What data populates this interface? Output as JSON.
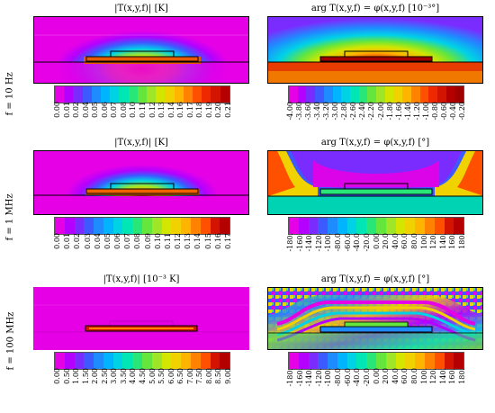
{
  "rows": [
    {
      "freq_label": "f = 10 Hz",
      "left": {
        "title": "|T(x,y,f)| [K]",
        "colorbar_ticks": [
          "0.00",
          "0.01",
          "0.02",
          "0.04",
          "0.05",
          "0.06",
          "0.07",
          "0.08",
          "0.10",
          "0.11",
          "0.12",
          "0.13",
          "0.14",
          "0.16",
          "0.17",
          "0.18",
          "0.19",
          "0.20",
          "0.21"
        ]
      },
      "right": {
        "title": "arg T(x,y,f) = φ(x,y,f) [10⁻³°]",
        "colorbar_ticks": [
          "-4.00",
          "-3.80",
          "-3.60",
          "-3.40",
          "-3.20",
          "-3.00",
          "-2.80",
          "-2.60",
          "-2.40",
          "-2.20",
          "-2.00",
          "-1.80",
          "-1.60",
          "-1.40",
          "-1.20",
          "-1.00",
          "-0.80",
          "-0.60",
          "-0.40",
          "-0.20"
        ]
      }
    },
    {
      "freq_label": "f = 1 MHz",
      "left": {
        "title": "|T(x,y,f)| [K]",
        "colorbar_ticks": [
          "0.00",
          "0.01",
          "0.02",
          "0.03",
          "0.04",
          "0.05",
          "0.06",
          "0.07",
          "0.08",
          "0.09",
          "0.10",
          "0.11",
          "0.12",
          "0.13",
          "0.14",
          "0.15",
          "0.16",
          "0.17"
        ]
      },
      "right": {
        "title": "arg T(x,y,f) = φ(x,y,f) [°]",
        "colorbar_ticks": [
          "-180.",
          "-160.",
          "-140.",
          "-120.",
          "-100.",
          "-80.0",
          "-60.0",
          "-40.0",
          "-20.0",
          "0.00",
          "20.0",
          "40.0",
          "60.0",
          "80.0",
          "100.",
          "120.",
          "140.",
          "160.",
          "180."
        ]
      }
    },
    {
      "freq_label": "f = 100 MHz",
      "left": {
        "title": "|T(x,y,f)| [10⁻³ K]",
        "colorbar_ticks": [
          "0.00",
          "0.50",
          "1.00",
          "1.50",
          "2.00",
          "2.50",
          "3.00",
          "3.50",
          "4.00",
          "4.50",
          "5.00",
          "5.50",
          "6.00",
          "6.50",
          "7.00",
          "7.50",
          "8.00",
          "8.50",
          "9.00"
        ]
      },
      "right": {
        "title": "arg T(x,y,f) = φ(x,y,f) [°]",
        "colorbar_ticks": [
          "-180.",
          "-160.",
          "-140.",
          "-120.",
          "-100.",
          "-80.0",
          "-60.0",
          "-40.0",
          "-20.0",
          "0.00",
          "20.0",
          "40.0",
          "60.0",
          "80.0",
          "100.",
          "120.",
          "140.",
          "160.",
          "180."
        ]
      }
    }
  ],
  "colormap": [
    "#e600e6",
    "#b400ff",
    "#7a2cff",
    "#3c5aff",
    "#1e8cff",
    "#00b4ff",
    "#00d2e6",
    "#00e6b4",
    "#28e678",
    "#64e63c",
    "#a0e628",
    "#d2e600",
    "#f0d200",
    "#ffb400",
    "#ff8200",
    "#ff5000",
    "#f02800",
    "#d21400",
    "#b40000"
  ]
}
